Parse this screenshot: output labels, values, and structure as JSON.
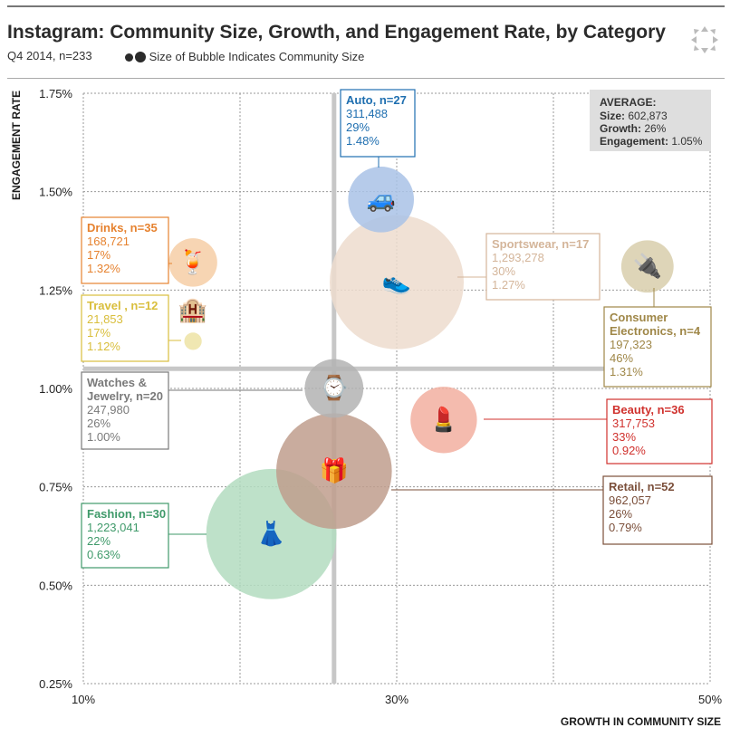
{
  "header": {
    "title": "Instagram: Community Size, Growth, and Engagement Rate, by Category",
    "subtitle": "Q4 2014, n=233",
    "legend_text": "Size of Bubble Indicates Community Size"
  },
  "expand_icon": "expand-arrows-icon",
  "chart_data": {
    "type": "scatter",
    "variant": "bubble",
    "xlabel": "GROWTH IN COMMUNITY SIZE",
    "ylabel": "ENGAGEMENT RATE",
    "xlim": [
      10,
      50
    ],
    "ylim": [
      0.25,
      1.75
    ],
    "x_ticks": [
      10,
      30,
      50
    ],
    "x_tick_labels": [
      "10%",
      "30%",
      "50%"
    ],
    "y_ticks": [
      0.25,
      0.5,
      0.75,
      1.0,
      1.25,
      1.5,
      1.75
    ],
    "y_tick_labels": [
      "0.25%",
      "0.50%",
      "0.75%",
      "1.00%",
      "1.25%",
      "1.50%",
      "1.75%"
    ],
    "grid": true,
    "average": {
      "label": "AVERAGE:",
      "lines": [
        {
          "key": "Size:",
          "value": "602,873"
        },
        {
          "key": "Growth:",
          "value": "26%"
        },
        {
          "key": "Engagement:",
          "value": "1.05%"
        }
      ],
      "growth": 26,
      "engagement": 1.05
    },
    "bubbles": [
      {
        "name": "Auto, n=27",
        "size": 311488,
        "size_label": "311,488",
        "growth": 29,
        "growth_label": "29%",
        "engagement": 1.48,
        "engagement_label": "1.48%",
        "color": "#1f6fb0",
        "fill": "#a9c2e6",
        "icon": "car-icon",
        "glyph": "🚙"
      },
      {
        "name": "Sportswear, n=17",
        "size": 1293278,
        "size_label": "1,293,278",
        "growth": 30,
        "growth_label": "30%",
        "engagement": 1.27,
        "engagement_label": "1.27%",
        "color": "#d4b59a",
        "fill": "#eddcce",
        "icon": "sneaker-icon",
        "glyph": "👟"
      },
      {
        "name": "Drinks, n=35",
        "size": 168721,
        "size_label": "168,721",
        "growth": 17,
        "growth_label": "17%",
        "engagement": 1.32,
        "engagement_label": "1.32%",
        "color": "#e6822f",
        "fill": "#f6cea6",
        "icon": "cocktail-icon",
        "glyph": "🍹"
      },
      {
        "name": "Travel , n=12",
        "size": 21853,
        "size_label": "21,853",
        "growth": 17,
        "growth_label": "17%",
        "engagement": 1.12,
        "engagement_label": "1.12%",
        "color": "#d9be3c",
        "fill": "#ede3a5",
        "icon": "hotel-icon",
        "glyph": "🏨"
      },
      {
        "name": "Consumer Electronics, n=4",
        "size": 197323,
        "size_label": "197,323",
        "growth": 46,
        "growth_label": "46%",
        "engagement": 1.31,
        "engagement_label": "1.31%",
        "color": "#9f8748",
        "fill": "#d8ceac",
        "icon": "plug-icon",
        "glyph": "🔌"
      },
      {
        "name": "Watches & Jewelry, n=20",
        "size": 247980,
        "size_label": "247,980",
        "growth": 26,
        "growth_label": "26%",
        "engagement": 1.0,
        "engagement_label": "1.00%",
        "color": "#7a7a7a",
        "fill": "#b3b3b3",
        "icon": "watch-icon",
        "glyph": "⌚"
      },
      {
        "name": "Beauty, n=36",
        "size": 317753,
        "size_label": "317,753",
        "growth": 33,
        "growth_label": "33%",
        "engagement": 0.92,
        "engagement_label": "0.92%",
        "color": "#d0312d",
        "fill": "#f2afa0",
        "icon": "lipstick-icon",
        "glyph": "💄"
      },
      {
        "name": "Retail, n=52",
        "size": 962057,
        "size_label": "962,057",
        "growth": 26,
        "growth_label": "26%",
        "engagement": 0.79,
        "engagement_label": "0.79%",
        "color": "#7b4f3a",
        "fill": "#bf9e8d",
        "icon": "gift-icon",
        "glyph": "🎁"
      },
      {
        "name": "Fashion, n=30",
        "size": 1223041,
        "size_label": "1,223,041",
        "growth": 22,
        "growth_label": "22%",
        "engagement": 0.63,
        "engagement_label": "0.63%",
        "color": "#3f9a6a",
        "fill": "#b3dcc0",
        "icon": "dress-icon",
        "glyph": "👗"
      }
    ]
  }
}
